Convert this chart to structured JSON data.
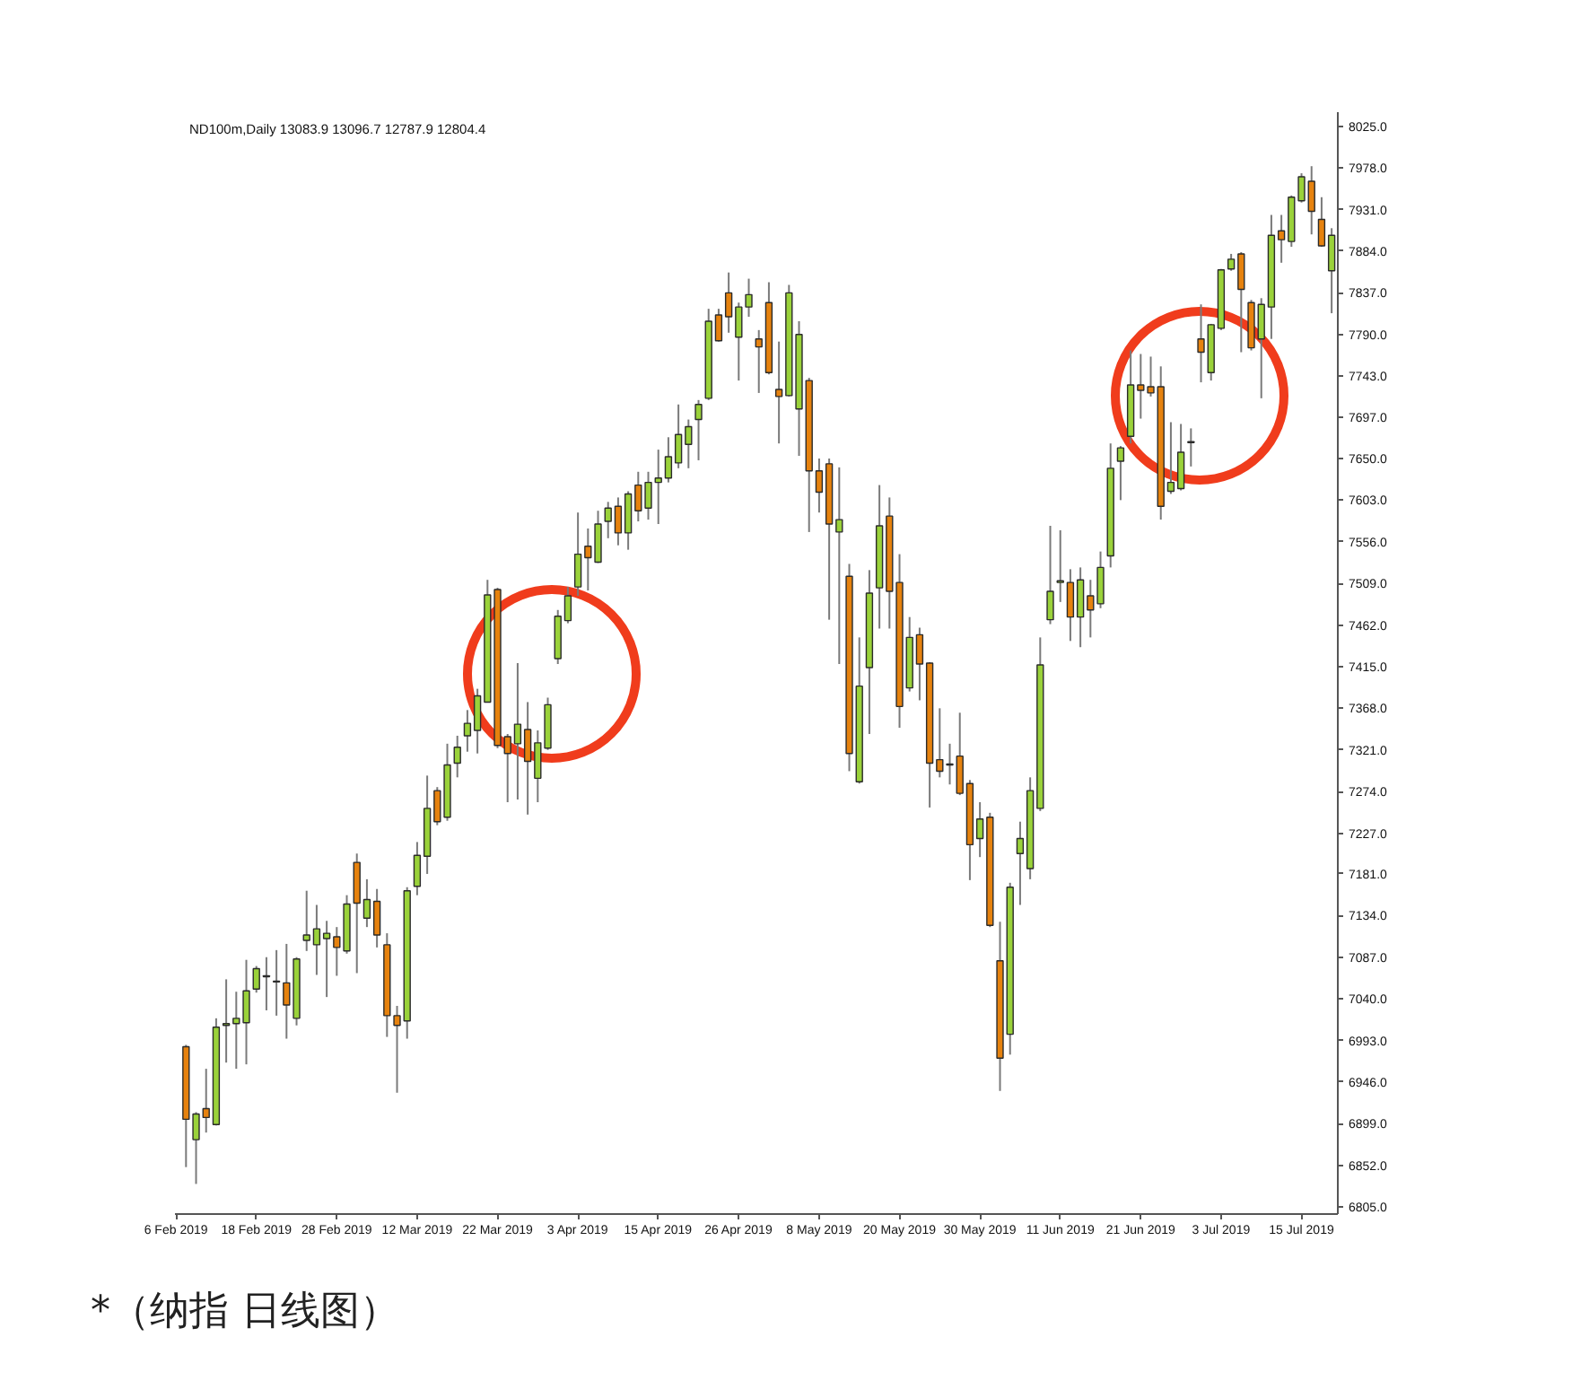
{
  "chart_data": {
    "type": "candlestick",
    "title": "ND100m,Daily 13083.9 13096.7 12787.9 12804.4",
    "categories": [
      "6 Feb 2019",
      null,
      null,
      null,
      null,
      null,
      null,
      null,
      "18 Feb 2019",
      null,
      null,
      null,
      null,
      null,
      null,
      null,
      "28 Feb 2019",
      null,
      null,
      null,
      null,
      null,
      null,
      null,
      "12 Mar 2019",
      null,
      null,
      null,
      null,
      null,
      null,
      null,
      "22 Mar 2019",
      null,
      null,
      null,
      null,
      null,
      null,
      null,
      "3 Apr 2019",
      null,
      null,
      null,
      null,
      null,
      null,
      null,
      "15 Apr 2019",
      null,
      null,
      null,
      null,
      null,
      null,
      null,
      "26 Apr 2019",
      null,
      null,
      null,
      null,
      null,
      null,
      null,
      "8 May 2019",
      null,
      null,
      null,
      null,
      null,
      null,
      null,
      "20 May 2019",
      null,
      null,
      null,
      null,
      null,
      null,
      null,
      "30 May 2019",
      null,
      null,
      null,
      null,
      null,
      null,
      null,
      "11 Jun 2019",
      null,
      null,
      null,
      null,
      null,
      null,
      null,
      "21 Jun 2019",
      null,
      null,
      null,
      null,
      null,
      null,
      null,
      "3 Jul 2019",
      null,
      null,
      null,
      null,
      null,
      null,
      null,
      "15 Jul 2019",
      null,
      null,
      null
    ],
    "ohlc": [
      null,
      [
        6986,
        6988,
        6850,
        6904
      ],
      [
        6881,
        6912,
        6831,
        6910
      ],
      [
        6916,
        6961,
        6889,
        6906
      ],
      [
        6898,
        7018,
        6897,
        7008
      ],
      [
        7010,
        7062,
        6968,
        7012
      ],
      [
        7012,
        7048,
        6961,
        7018
      ],
      [
        7013,
        7084,
        6966,
        7049
      ],
      [
        7051,
        7077,
        7047,
        7074
      ],
      [
        7065,
        7087,
        7027,
        7066
      ],
      [
        7060,
        7095,
        7021,
        7059
      ],
      [
        7058,
        7102,
        6995,
        7033
      ],
      [
        7018,
        7087,
        7010,
        7085
      ],
      [
        7106,
        7162,
        7094,
        7112
      ],
      [
        7101,
        7146,
        7067,
        7119
      ],
      [
        7108,
        7128,
        7042,
        7114
      ],
      [
        7110,
        7121,
        7066,
        7098
      ],
      [
        7094,
        7157,
        7091,
        7147
      ],
      [
        7194,
        7204,
        7069,
        7148
      ],
      [
        7131,
        7175,
        7121,
        7152
      ],
      [
        7150,
        7164,
        7098,
        7112
      ],
      [
        7101,
        7114,
        6997,
        7021
      ],
      [
        7021,
        7032,
        6934,
        7010
      ],
      [
        7015,
        7166,
        6995,
        7162
      ],
      [
        7167,
        7217,
        7157,
        7202
      ],
      [
        7201,
        7292,
        7181,
        7255
      ],
      [
        7275,
        7279,
        7236,
        7240
      ],
      [
        7245,
        7328,
        7241,
        7304
      ],
      [
        7306,
        7337,
        7290,
        7324
      ],
      [
        7337,
        7366,
        7319,
        7351
      ],
      [
        7343,
        7390,
        7317,
        7382
      ],
      [
        7375,
        7513,
        7375,
        7496
      ],
      [
        7502,
        7504,
        7323,
        7326
      ],
      [
        7336,
        7339,
        7262,
        7317
      ],
      [
        7328,
        7419,
        7265,
        7350
      ],
      [
        7344,
        7375,
        7248,
        7308
      ],
      [
        7289,
        7343,
        7262,
        7329
      ],
      [
        7323,
        7380,
        7321,
        7372
      ],
      [
        7424,
        7479,
        7418,
        7472
      ],
      [
        7467,
        7505,
        7464,
        7495
      ],
      [
        7505,
        7589,
        7495,
        7542
      ],
      [
        7551,
        7571,
        7501,
        7538
      ],
      [
        7533,
        7591,
        7532,
        7576
      ],
      [
        7579,
        7601,
        7560,
        7594
      ],
      [
        7596,
        7606,
        7552,
        7566
      ],
      [
        7566,
        7613,
        7547,
        7610
      ],
      [
        7620,
        7635,
        7579,
        7591
      ],
      [
        7594,
        7635,
        7581,
        7623
      ],
      [
        7623,
        7660,
        7576,
        7628
      ],
      [
        7628,
        7674,
        7623,
        7652
      ],
      [
        7645,
        7711,
        7639,
        7677
      ],
      [
        7666,
        7694,
        7639,
        7686
      ],
      [
        7694,
        7716,
        7648,
        7711
      ],
      [
        7718,
        7819,
        7716,
        7805
      ],
      [
        7812,
        7819,
        7782,
        7783
      ],
      [
        7837,
        7860,
        7792,
        7810
      ],
      [
        7787,
        7826,
        7738,
        7821
      ],
      [
        7821,
        7853,
        7810,
        7835
      ],
      [
        7785,
        7795,
        7724,
        7776
      ],
      [
        7826,
        7849,
        7745,
        7747
      ],
      [
        7728,
        7782,
        7667,
        7720
      ],
      [
        7721,
        7846,
        7720,
        7837
      ],
      [
        7706,
        7805,
        7653,
        7790
      ],
      [
        7738,
        7741,
        7567,
        7636
      ],
      [
        7636,
        7650,
        7589,
        7612
      ],
      [
        7644,
        7650,
        7468,
        7576
      ],
      [
        7567,
        7640,
        7418,
        7581
      ],
      [
        7517,
        7531,
        7297,
        7317
      ],
      [
        7285,
        7448,
        7283,
        7393
      ],
      [
        7414,
        7524,
        7339,
        7498
      ],
      [
        7504,
        7620,
        7458,
        7574
      ],
      [
        7585,
        7606,
        7458,
        7500
      ],
      [
        7510,
        7542,
        7346,
        7370
      ],
      [
        7391,
        7471,
        7387,
        7448
      ],
      [
        7451,
        7459,
        7377,
        7418
      ],
      [
        7419,
        7420,
        7256,
        7306
      ],
      [
        7310,
        7368,
        7290,
        7297
      ],
      [
        7305,
        7328,
        7282,
        7304
      ],
      [
        7314,
        7363,
        7270,
        7272
      ],
      [
        7283,
        7287,
        7174,
        7214
      ],
      [
        7221,
        7262,
        7200,
        7243
      ],
      [
        7245,
        7250,
        7121,
        7123
      ],
      [
        7083,
        7127,
        6936,
        6973
      ],
      [
        7000,
        7171,
        6977,
        7166
      ],
      [
        7204,
        7240,
        7146,
        7221
      ],
      [
        7187,
        7290,
        7175,
        7275
      ],
      [
        7255,
        7448,
        7252,
        7417
      ],
      [
        7468,
        7574,
        7463,
        7500
      ],
      [
        7510,
        7569,
        7488,
        7512
      ],
      [
        7510,
        7525,
        7444,
        7471
      ],
      [
        7471,
        7527,
        7437,
        7513
      ],
      [
        7495,
        7513,
        7448,
        7479
      ],
      [
        7486,
        7545,
        7481,
        7527
      ],
      [
        7540,
        7667,
        7527,
        7639
      ],
      [
        7647,
        7664,
        7603,
        7662
      ],
      [
        7675,
        7772,
        7667,
        7733
      ],
      [
        7733,
        7768,
        7695,
        7727
      ],
      [
        7731,
        7765,
        7720,
        7724
      ],
      [
        7731,
        7754,
        7581,
        7596
      ],
      [
        7613,
        7691,
        7610,
        7623
      ],
      [
        7616,
        7689,
        7614,
        7657
      ],
      [
        7668,
        7684,
        7641,
        7669
      ],
      [
        7785,
        7824,
        7736,
        7770
      ],
      [
        7747,
        7802,
        7738,
        7801
      ],
      [
        7797,
        7864,
        7795,
        7863
      ],
      [
        7864,
        7881,
        7862,
        7875
      ],
      [
        7881,
        7883,
        7770,
        7841
      ],
      [
        7826,
        7829,
        7772,
        7775
      ],
      [
        7785,
        7831,
        7718,
        7824
      ],
      [
        7821,
        7925,
        7785,
        7902
      ],
      [
        7907,
        7925,
        7871,
        7897
      ],
      [
        7895,
        7947,
        7889,
        7945
      ],
      [
        7941,
        7972,
        7939,
        7968
      ],
      [
        7963,
        7980,
        7903,
        7929
      ],
      [
        7920,
        7945,
        7889,
        7890
      ],
      [
        7862,
        7910,
        7814,
        7902
      ]
    ],
    "colors": [
      null,
      "#e6820e",
      "#9ad23a",
      "#e6820e",
      "#9ad23a",
      "#9ad23a",
      "#9ad23a",
      "#9ad23a",
      "#9ad23a",
      "#9ad23a",
      "#e6820e",
      "#e6820e",
      "#9ad23a",
      "#9ad23a",
      "#9ad23a",
      "#9ad23a",
      "#e6820e",
      "#9ad23a",
      "#e6820e",
      "#9ad23a",
      "#e6820e",
      "#e6820e",
      "#e6820e",
      "#9ad23a",
      "#9ad23a",
      "#9ad23a",
      "#e6820e",
      "#9ad23a",
      "#9ad23a",
      "#9ad23a",
      "#9ad23a",
      "#9ad23a",
      "#e6820e",
      "#e6820e",
      "#9ad23a",
      "#e6820e",
      "#9ad23a",
      "#9ad23a",
      "#9ad23a",
      "#9ad23a",
      "#9ad23a",
      "#e6820e",
      "#9ad23a",
      "#9ad23a",
      "#e6820e",
      "#9ad23a",
      "#e6820e",
      "#9ad23a",
      "#9ad23a",
      "#9ad23a",
      "#9ad23a",
      "#9ad23a",
      "#9ad23a",
      "#9ad23a",
      "#e6820e",
      "#e6820e",
      "#9ad23a",
      "#9ad23a",
      "#e6820e",
      "#e6820e",
      "#e6820e",
      "#9ad23a",
      "#9ad23a",
      "#e6820e",
      "#e6820e",
      "#e6820e",
      "#9ad23a",
      "#e6820e",
      "#9ad23a",
      "#9ad23a",
      "#9ad23a",
      "#e6820e",
      "#e6820e",
      "#9ad23a",
      "#e6820e",
      "#e6820e",
      "#e6820e",
      "#e6820e",
      "#e6820e",
      "#e6820e",
      "#9ad23a",
      "#e6820e",
      "#e6820e",
      "#9ad23a",
      "#9ad23a",
      "#9ad23a",
      "#9ad23a",
      "#9ad23a",
      "#9ad23a",
      "#e6820e",
      "#9ad23a",
      "#e6820e",
      "#9ad23a",
      "#9ad23a",
      "#9ad23a",
      "#9ad23a",
      "#e6820e",
      "#e6820e",
      "#e6820e",
      "#9ad23a",
      "#9ad23a",
      "#9ad23a",
      "#e6820e",
      "#9ad23a",
      "#9ad23a",
      "#9ad23a",
      "#e6820e",
      "#e6820e",
      "#9ad23a",
      "#9ad23a",
      "#e6820e",
      "#9ad23a",
      "#9ad23a",
      "#e6820e",
      "#e6820e",
      "#9ad23a"
    ],
    "ylim": [
      6797,
      8041
    ],
    "yticks": [
      {
        "value": 6805,
        "label": "6805.0"
      },
      {
        "value": 6852,
        "label": "6852.0"
      },
      {
        "value": 6899,
        "label": "6899.0"
      },
      {
        "value": 6946,
        "label": "6946.0"
      },
      {
        "value": 6993,
        "label": "6993.0"
      },
      {
        "value": 7040,
        "label": "7040.0"
      },
      {
        "value": 7087,
        "label": "7087.0"
      },
      {
        "value": 7134,
        "label": "7134.0"
      },
      {
        "value": 7181,
        "label": "7181.0"
      },
      {
        "value": 7227,
        "label": "7227.0"
      },
      {
        "value": 7274,
        "label": "7274.0"
      },
      {
        "value": 7321,
        "label": "7321.0"
      },
      {
        "value": 7368,
        "label": "7368.0"
      },
      {
        "value": 7415,
        "label": "7415.0"
      },
      {
        "value": 7462,
        "label": "7462.0"
      },
      {
        "value": 7509,
        "label": "7509.0"
      },
      {
        "value": 7556,
        "label": "7556.0"
      },
      {
        "value": 7603,
        "label": "7603.0"
      },
      {
        "value": 7650,
        "label": "7650.0"
      },
      {
        "value": 7697,
        "label": "7697.0"
      },
      {
        "value": 7743,
        "label": "7743.0"
      },
      {
        "value": 7790,
        "label": "7790.0"
      },
      {
        "value": 7837,
        "label": "7837.0"
      },
      {
        "value": 7884,
        "label": "7884.0"
      },
      {
        "value": 7931,
        "label": "7931.0"
      },
      {
        "value": 7978,
        "label": "7978.0"
      },
      {
        "value": 8025,
        "label": "8025.0"
      }
    ],
    "annotations": [
      "*（纳指 日线图）"
    ]
  }
}
